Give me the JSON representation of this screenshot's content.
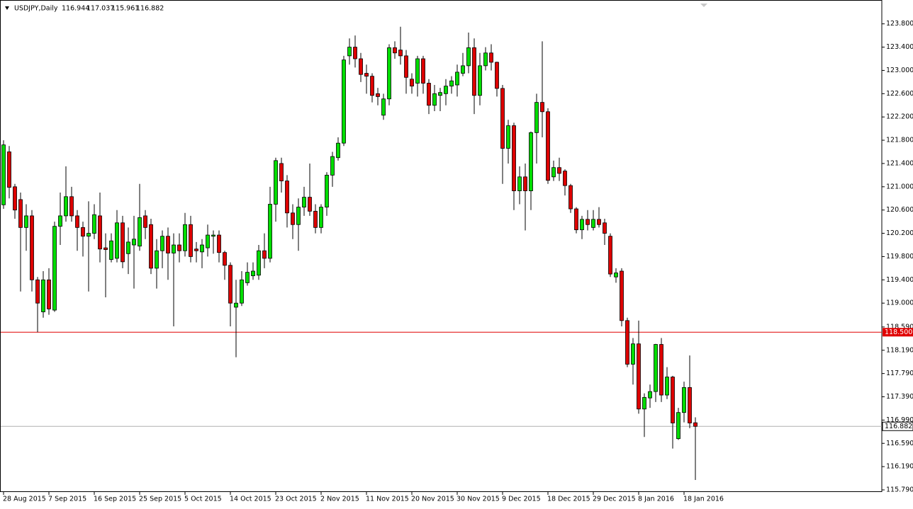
{
  "chart_data": {
    "type": "candlestick",
    "title": "USDJPY,Daily",
    "up_color": "#00dd00",
    "down_color": "#dd0000",
    "grid": false,
    "categories": [
      "28 Aug 2015",
      null,
      null,
      null,
      null,
      null,
      null,
      null,
      "7 Sep 2015",
      null,
      null,
      null,
      null,
      null,
      null,
      null,
      "16 Sep 2015",
      null,
      null,
      null,
      null,
      null,
      null,
      null,
      "25 Sep 2015",
      null,
      null,
      null,
      null,
      null,
      null,
      null,
      "5 Oct 2015",
      null,
      null,
      null,
      null,
      null,
      null,
      null,
      "14 Oct 2015",
      null,
      null,
      null,
      null,
      null,
      null,
      null,
      "23 Oct 2015",
      null,
      null,
      null,
      null,
      null,
      null,
      null,
      "2 Nov 2015",
      null,
      null,
      null,
      null,
      null,
      null,
      null,
      "11 Nov 2015",
      null,
      null,
      null,
      null,
      null,
      null,
      null,
      "20 Nov 2015",
      null,
      null,
      null,
      null,
      null,
      null,
      null,
      "30 Nov 2015",
      null,
      null,
      null,
      null,
      null,
      null,
      null,
      "9 Dec 2015",
      null,
      null,
      null,
      null,
      null,
      null,
      null,
      "18 Dec 2015",
      null,
      null,
      null,
      null,
      null,
      null,
      null,
      "29 Dec 2015",
      null,
      null,
      null,
      null,
      null,
      null,
      null,
      "8 Jan 2016",
      null,
      null,
      null,
      null,
      null,
      null,
      null,
      "18 Jan 2016",
      null,
      null
    ],
    "open": [
      120.69,
      121.6,
      121.0,
      120.78,
      120.3,
      120.5,
      119.4,
      118.85,
      119.4,
      118.88,
      120.32,
      120.5,
      120.83,
      120.5,
      120.3,
      120.15,
      120.2,
      120.5,
      119.95,
      119.75,
      119.77,
      120.38,
      119.85,
      120.0,
      119.98,
      120.5,
      120.35,
      119.6,
      119.9,
      120.15,
      119.86,
      120.0,
      119.9,
      120.35,
      119.93,
      119.88,
      119.95,
      120.15,
      120.17,
      119.87,
      119.65,
      118.93,
      119.0,
      119.35,
      119.47,
      119.48,
      119.9,
      119.77,
      120.7,
      121.4,
      121.1,
      120.55,
      120.35,
      120.65,
      120.82,
      120.58,
      120.3,
      120.65,
      121.2,
      121.5,
      121.75,
      123.25,
      123.4,
      123.2,
      122.95,
      122.9,
      122.6,
      122.23,
      122.51,
      123.39,
      123.35,
      123.25,
      122.85,
      122.78,
      123.2,
      122.78,
      122.4,
      122.57,
      122.6,
      122.73,
      122.75,
      122.95,
      123.08,
      123.39,
      122.57,
      123.08,
      123.3,
      123.14,
      122.69,
      121.66,
      122.05,
      120.93,
      121.17,
      120.93,
      121.93,
      122.45,
      122.29,
      121.17,
      121.33,
      121.27,
      121.02,
      120.62,
      120.26,
      120.44,
      120.3,
      120.44,
      120.38,
      120.15,
      119.45,
      119.55,
      118.7,
      117.95,
      118.3,
      117.18,
      117.37,
      117.48,
      118.29,
      117.42,
      117.73,
      116.67,
      117.12,
      117.55,
      116.944
    ],
    "high": [
      121.8,
      121.7,
      121.05,
      120.9,
      120.7,
      120.6,
      119.45,
      119.55,
      119.6,
      120.4,
      120.9,
      121.35,
      121.0,
      120.6,
      120.4,
      120.75,
      120.7,
      120.9,
      120.2,
      120.2,
      120.6,
      120.5,
      120.3,
      120.5,
      121.05,
      120.6,
      120.45,
      120.1,
      120.25,
      120.3,
      120.2,
      120.2,
      120.55,
      120.5,
      120.05,
      120.1,
      120.35,
      120.25,
      120.25,
      119.9,
      119.7,
      119.4,
      119.55,
      119.7,
      119.7,
      120.0,
      120.2,
      121.0,
      121.5,
      121.5,
      121.2,
      120.7,
      120.8,
      121.0,
      121.4,
      120.7,
      120.7,
      121.25,
      121.6,
      121.85,
      123.25,
      123.55,
      123.6,
      123.3,
      123.1,
      122.95,
      122.7,
      122.6,
      123.45,
      123.5,
      123.75,
      123.35,
      122.95,
      123.25,
      123.25,
      122.85,
      122.75,
      122.7,
      122.85,
      122.9,
      123.1,
      123.3,
      123.65,
      123.55,
      123.3,
      123.4,
      123.45,
      123.15,
      122.75,
      122.15,
      122.1,
      121.35,
      121.4,
      121.95,
      122.6,
      123.5,
      122.35,
      121.45,
      121.5,
      121.3,
      121.05,
      120.65,
      120.5,
      120.6,
      120.6,
      120.65,
      120.45,
      120.2,
      119.6,
      119.6,
      118.75,
      118.4,
      118.7,
      117.45,
      117.6,
      118.3,
      118.4,
      117.9,
      117.75,
      117.2,
      117.65,
      118.1,
      117.037
    ],
    "low": [
      120.62,
      120.8,
      120.45,
      119.2,
      119.9,
      119.2,
      118.5,
      118.75,
      118.8,
      118.85,
      120.0,
      120.4,
      120.4,
      119.9,
      119.8,
      119.2,
      120.1,
      119.7,
      119.1,
      119.7,
      119.7,
      119.6,
      119.5,
      119.25,
      119.9,
      120.1,
      119.5,
      119.25,
      119.6,
      119.4,
      118.6,
      119.7,
      119.8,
      119.7,
      119.7,
      119.6,
      119.8,
      119.85,
      119.7,
      119.4,
      118.6,
      118.07,
      118.95,
      119.3,
      119.4,
      119.4,
      119.6,
      119.7,
      120.4,
      120.9,
      120.3,
      120.1,
      119.9,
      120.5,
      120.5,
      120.2,
      120.2,
      120.5,
      121.0,
      121.45,
      121.7,
      123.1,
      123.05,
      122.8,
      122.6,
      122.45,
      122.4,
      122.15,
      122.4,
      123.2,
      123.1,
      122.6,
      122.6,
      122.55,
      122.6,
      122.25,
      122.3,
      122.3,
      122.4,
      122.6,
      122.55,
      122.9,
      122.95,
      122.25,
      122.4,
      123.0,
      123.0,
      122.55,
      121.05,
      121.4,
      120.6,
      120.7,
      120.25,
      120.6,
      121.4,
      121.85,
      121.05,
      121.1,
      121.1,
      120.85,
      120.55,
      120.2,
      120.1,
      120.25,
      120.25,
      120.3,
      120.0,
      119.45,
      119.35,
      118.6,
      117.9,
      117.6,
      117.1,
      116.7,
      117.2,
      117.3,
      117.3,
      117.35,
      116.5,
      116.65,
      116.95,
      116.85,
      115.961
    ],
    "close": [
      121.72,
      120.99,
      120.6,
      120.3,
      120.5,
      119.4,
      119.0,
      119.4,
      118.9,
      120.32,
      120.5,
      120.83,
      120.5,
      120.3,
      120.15,
      120.2,
      120.52,
      119.93,
      119.92,
      120.07,
      120.38,
      119.71,
      120.05,
      120.1,
      120.47,
      120.3,
      119.6,
      119.9,
      120.15,
      119.86,
      120.0,
      119.9,
      120.35,
      119.8,
      119.9,
      120.0,
      120.17,
      120.17,
      119.87,
      119.65,
      119.0,
      119.0,
      119.4,
      119.53,
      119.55,
      119.9,
      119.77,
      120.7,
      121.45,
      121.1,
      120.55,
      120.35,
      120.65,
      120.82,
      120.58,
      120.3,
      120.65,
      121.2,
      121.52,
      121.75,
      123.18,
      123.4,
      123.2,
      122.93,
      122.9,
      122.57,
      122.55,
      122.51,
      123.39,
      123.3,
      123.25,
      122.88,
      122.73,
      123.2,
      122.78,
      122.4,
      122.6,
      122.62,
      122.73,
      122.82,
      122.97,
      123.08,
      123.39,
      122.57,
      123.08,
      123.3,
      123.14,
      122.69,
      121.66,
      122.05,
      120.93,
      121.17,
      120.93,
      121.93,
      122.45,
      122.29,
      121.11,
      121.33,
      121.23,
      121.02,
      120.62,
      120.26,
      120.44,
      120.35,
      120.44,
      120.35,
      120.2,
      119.5,
      119.52,
      118.7,
      117.95,
      118.3,
      117.18,
      117.38,
      117.48,
      118.29,
      117.42,
      117.73,
      116.94,
      117.12,
      117.55,
      116.94,
      116.882
    ],
    "ylim": [
      115.79,
      124.21
    ],
    "yticks": [
      {
        "value": 123.8,
        "label": "123.800"
      },
      {
        "value": 123.4,
        "label": "123.400"
      },
      {
        "value": 123.0,
        "label": "123.000"
      },
      {
        "value": 122.6,
        "label": "122.600"
      },
      {
        "value": 122.2,
        "label": "122.200"
      },
      {
        "value": 121.8,
        "label": "121.800"
      },
      {
        "value": 121.4,
        "label": "121.400"
      },
      {
        "value": 121.0,
        "label": "121.000"
      },
      {
        "value": 120.6,
        "label": "120.600"
      },
      {
        "value": 120.2,
        "label": "120.200"
      },
      {
        "value": 119.8,
        "label": "119.800"
      },
      {
        "value": 119.4,
        "label": "119.400"
      },
      {
        "value": 119.0,
        "label": "119.000"
      },
      {
        "value": 118.59,
        "label": "118.590"
      },
      {
        "value": 118.19,
        "label": "118.190"
      },
      {
        "value": 117.79,
        "label": "117.790"
      },
      {
        "value": 117.39,
        "label": "117.390"
      },
      {
        "value": 116.99,
        "label": "116.990"
      },
      {
        "value": 116.59,
        "label": "116.590"
      },
      {
        "value": 116.19,
        "label": "116.190"
      },
      {
        "value": 115.79,
        "label": "115.790"
      }
    ],
    "level": {
      "value": 118.5,
      "label": "118.500",
      "color": "#e00000"
    },
    "price_line_color": "#b0b0b0"
  }
}
